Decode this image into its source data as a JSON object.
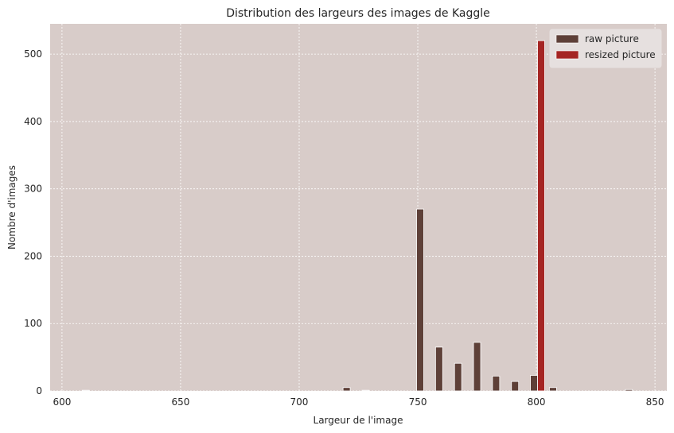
{
  "chart_data": {
    "type": "bar",
    "title": "Distribution des largeurs des images de Kaggle",
    "xlabel": "Largeur de l'image",
    "ylabel": "Nombre d'images",
    "xlim": [
      595,
      855
    ],
    "ylim": [
      0,
      545
    ],
    "xticks": [
      600,
      650,
      700,
      750,
      800,
      850
    ],
    "yticks": [
      0,
      100,
      200,
      300,
      400,
      500
    ],
    "grid": true,
    "legend_position": "top-right",
    "background": "#d8ccc9",
    "bar_width": 3.0,
    "series": [
      {
        "name": "raw picture",
        "color": "#5e4038",
        "x": [
          610,
          720,
          728,
          751,
          759,
          767,
          775,
          783,
          791,
          799,
          807,
          839
        ],
        "values": [
          1,
          5,
          1,
          270,
          65,
          41,
          72,
          22,
          14,
          23,
          5,
          2
        ]
      },
      {
        "name": "resized picture",
        "color": "#a52523",
        "x": [
          802
        ],
        "values": [
          520
        ]
      }
    ]
  }
}
